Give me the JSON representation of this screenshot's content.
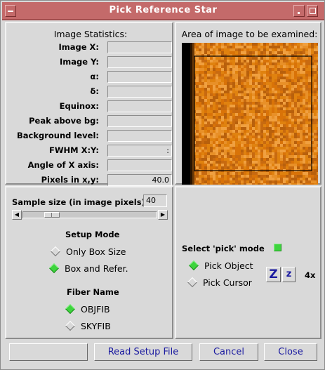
{
  "window": {
    "title": "Pick Reference Star"
  },
  "stats": {
    "title": "Image Statistics:",
    "rows": [
      {
        "label": "Image X:",
        "value": ""
      },
      {
        "label": "Image Y:",
        "value": ""
      },
      {
        "label": "α:",
        "value": ""
      },
      {
        "label": "δ:",
        "value": ""
      },
      {
        "label": "Equinox:",
        "value": ""
      },
      {
        "label": "Peak above bg:",
        "value": ""
      },
      {
        "label": "Background level:",
        "value": ""
      },
      {
        "label": "FWHM X:Y:",
        "value": ":"
      },
      {
        "label": "Angle of X axis:",
        "value": ""
      },
      {
        "label": "Pixels in x,y:",
        "value": "40.0"
      }
    ]
  },
  "area": {
    "title": "Area of image to be examined:",
    "pixel_colors": [
      "#e0820f",
      "#d97308",
      "#f0a040",
      "#c86a10",
      "#e89028",
      "#b8600c"
    ]
  },
  "sample": {
    "label": "Sample size (in image pixels):",
    "value": "40",
    "slider_fraction": 0.18
  },
  "setup_mode": {
    "title": "Setup Mode",
    "options": [
      {
        "label": "Only Box Size",
        "selected": false
      },
      {
        "label": "Box and Refer.",
        "selected": true
      }
    ]
  },
  "fiber": {
    "title": "Fiber Name",
    "options": [
      {
        "label": "OBJFIB",
        "selected": true
      },
      {
        "label": "SKYFIB",
        "selected": false
      }
    ]
  },
  "pick": {
    "label": "Select 'pick' mode",
    "options": [
      {
        "label": "Pick Object",
        "selected": true
      },
      {
        "label": "Pick Cursor",
        "selected": false
      }
    ],
    "zoom_in_label": "Z",
    "zoom_out_label": "z",
    "zoom_level": "4x"
  },
  "buttons": {
    "blank": "",
    "read_setup": "Read Setup File",
    "cancel": "Cancel",
    "close": "Close"
  },
  "colors": {
    "title_bar": "#c46a6a",
    "selected_indicator": "#3ed43e",
    "button_text": "#1a1aa0"
  }
}
